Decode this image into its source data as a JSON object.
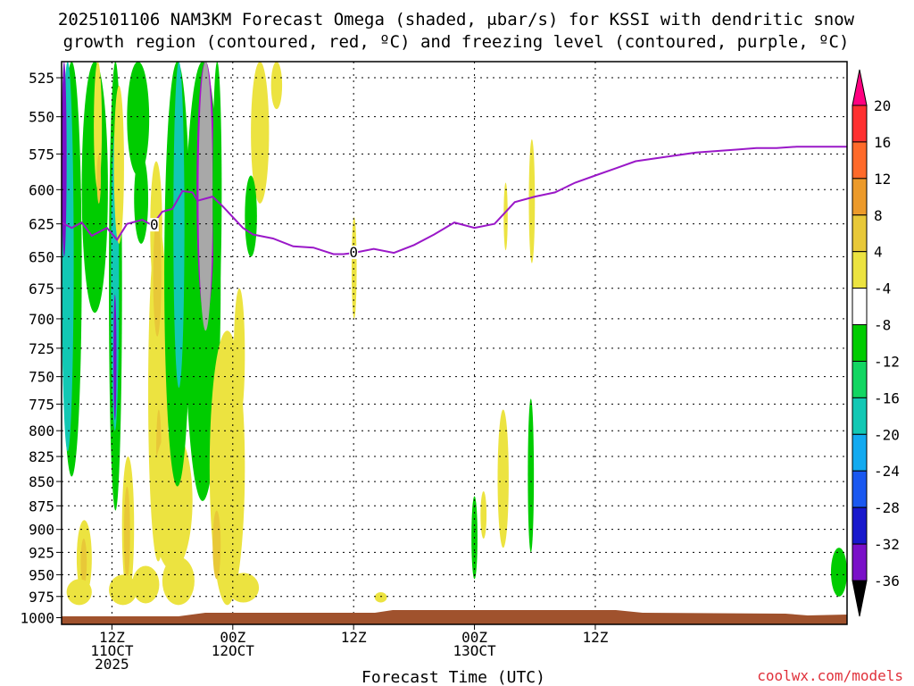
{
  "title": {
    "line1": "2025101106 NAM3KM Forecast Omega (shaded, μbar/s) for KSSI with dendritic snow",
    "line2": "growth region (contoured, red, ºC) and freezing level (contoured, purple, ºC)"
  },
  "credit": "coolwx.com/models",
  "colors": {
    "freezing_level": "#9a18c8",
    "terrain": "#a0522d",
    "grid": "#000000"
  },
  "chart_data": {
    "type": "heatmap",
    "xlabel": "Forecast Time (UTC)",
    "ylabel": "",
    "x_range_hours": [
      -17,
      61
    ],
    "y_range_hPa": [
      515,
      1008
    ],
    "y_scale": "log-pressure (inverted)",
    "grid": true,
    "y_ticks": [
      525,
      550,
      575,
      600,
      625,
      650,
      675,
      700,
      725,
      750,
      775,
      800,
      825,
      850,
      875,
      900,
      925,
      950,
      975,
      1000
    ],
    "x_ticks": [
      {
        "hour": -12,
        "l1": "12Z",
        "l2": "11OCT",
        "l3": "2025"
      },
      {
        "hour": 0,
        "l1": "00Z",
        "l2": "12OCT",
        "l3": ""
      },
      {
        "hour": 12,
        "l1": "12Z",
        "l2": "",
        "l3": ""
      },
      {
        "hour": 24,
        "l1": "00Z",
        "l2": "13OCT",
        "l3": ""
      },
      {
        "hour": 36,
        "l1": "12Z",
        "l2": "",
        "l3": ""
      }
    ],
    "colorbar": {
      "units": "μbar/s",
      "levels": [
        20,
        16,
        12,
        8,
        4,
        -4,
        -8,
        -12,
        -16,
        -20,
        -24,
        -28,
        -32,
        -36
      ],
      "colors": [
        "#ff0080",
        "#ff3030",
        "#ff6a2a",
        "#ec9a2a",
        "#e8c838",
        "#ece340",
        "#ffffff",
        "#00cc00",
        "#12d662",
        "#12c8b4",
        "#12aaf0",
        "#1a58f0",
        "#1818cc",
        "#7a10c8",
        "#a810c8",
        "#a8a8a8",
        "#000000"
      ]
    },
    "freezing_level_label": "0",
    "freezing_level": {
      "name": "0 ºC level",
      "x_hours": [
        -17,
        -16,
        -15,
        -14,
        -12.5,
        -11.5,
        -10.5,
        -9,
        -8,
        -7,
        -6,
        -5,
        -4,
        -3.5,
        -2,
        -1,
        0,
        1,
        2,
        4,
        6,
        8,
        10,
        11,
        12,
        14,
        16,
        18,
        20,
        22,
        24,
        26,
        28,
        30,
        32,
        34,
        36,
        38,
        40,
        42,
        44,
        46,
        48,
        50,
        52,
        54,
        56,
        58,
        61
      ],
      "y_hPa": [
        624,
        628,
        624,
        634,
        628,
        637,
        625,
        622,
        626,
        616,
        614,
        601,
        602,
        608,
        605,
        612,
        620,
        628,
        633,
        636,
        642,
        643,
        648,
        648,
        647,
        644,
        647,
        641,
        633,
        624,
        628,
        625,
        609,
        605,
        602,
        595,
        590,
        585,
        580,
        578,
        576,
        574,
        573,
        572,
        571,
        571,
        570,
        570,
        570
      ]
    },
    "omega_features": [
      {
        "level": 4,
        "x0": -15.5,
        "x1": -14,
        "p_top": 890,
        "p_bot": 975
      },
      {
        "level": 8,
        "x0": -15.1,
        "x1": -14.5,
        "p_top": 910,
        "p_bot": 962
      },
      {
        "level": 4,
        "x0": -16.5,
        "x1": -14,
        "p_top": 955,
        "p_bot": 985
      },
      {
        "level": -4,
        "x0": -17,
        "x1": -15,
        "p_top": 515,
        "p_bot": 845
      },
      {
        "level": -12,
        "x0": -17,
        "x1": -15.8,
        "p_top": 515,
        "p_bot": 820
      },
      {
        "level": -28,
        "x0": -17,
        "x1": -16.5,
        "p_top": 515,
        "p_bot": 650
      },
      {
        "level": -4,
        "x0": -15,
        "x1": -12.4,
        "p_top": 515,
        "p_bot": 695
      },
      {
        "level": 4,
        "x0": -13.8,
        "x1": -13,
        "p_top": 515,
        "p_bot": 600
      },
      {
        "level": 8,
        "x0": -13.5,
        "x1": -13.1,
        "p_top": 575,
        "p_bot": 610
      },
      {
        "level": -4,
        "x0": -12.3,
        "x1": -11,
        "p_top": 515,
        "p_bot": 880
      },
      {
        "level": -12,
        "x0": -12.1,
        "x1": -11.3,
        "p_top": 560,
        "p_bot": 800
      },
      {
        "level": -28,
        "x0": -11.85,
        "x1": -11.55,
        "p_top": 680,
        "p_bot": 790
      },
      {
        "level": 4,
        "x0": -11.8,
        "x1": -10.8,
        "p_top": 530,
        "p_bot": 640
      },
      {
        "level": 4,
        "x0": -11,
        "x1": -9.8,
        "p_top": 825,
        "p_bot": 975
      },
      {
        "level": 8,
        "x0": -10.8,
        "x1": -10.2,
        "p_top": 855,
        "p_bot": 955
      },
      {
        "level": 4,
        "x0": -12.3,
        "x1": -9.5,
        "p_top": 950,
        "p_bot": 985
      },
      {
        "level": 4,
        "x0": -10,
        "x1": -7.3,
        "p_top": 940,
        "p_bot": 983
      },
      {
        "level": -4,
        "x0": -10.5,
        "x1": -8.3,
        "p_top": 515,
        "p_bot": 590
      },
      {
        "level": -4,
        "x0": -9.8,
        "x1": -8.4,
        "p_top": 575,
        "p_bot": 640
      },
      {
        "level": 4,
        "x0": -8.4,
        "x1": -6.4,
        "p_top": 625,
        "p_bot": 935
      },
      {
        "level": 4,
        "x0": -8.2,
        "x1": -7,
        "p_top": 580,
        "p_bot": 680
      },
      {
        "level": 8,
        "x0": -7.9,
        "x1": -7.1,
        "p_top": 620,
        "p_bot": 715
      },
      {
        "level": 8,
        "x0": -7.6,
        "x1": -7.1,
        "p_top": 780,
        "p_bot": 860
      },
      {
        "level": 4,
        "x0": -7,
        "x1": -3.8,
        "p_top": 930,
        "p_bot": 985
      },
      {
        "level": 4,
        "x0": -8,
        "x1": -4,
        "p_top": 800,
        "p_bot": 945
      },
      {
        "level": -4,
        "x0": -6.8,
        "x1": -4.2,
        "p_top": 515,
        "p_bot": 855
      },
      {
        "level": -12,
        "x0": -5.9,
        "x1": -4.8,
        "p_top": 515,
        "p_bot": 760
      },
      {
        "level": -4,
        "x0": -4.8,
        "x1": -1.2,
        "p_top": 515,
        "p_bot": 870
      },
      {
        "level": -32,
        "x0": -3.6,
        "x1": -1.8,
        "p_top": 515,
        "p_bot": 700
      },
      {
        "level": -36,
        "x0": -3.4,
        "x1": -2,
        "p_top": 515,
        "p_bot": 710
      },
      {
        "level": -4,
        "x0": -2,
        "x1": -1.1,
        "p_top": 515,
        "p_bot": 700
      },
      {
        "level": 4,
        "x0": -2.3,
        "x1": 1.2,
        "p_top": 710,
        "p_bot": 985
      },
      {
        "level": 8,
        "x0": -2,
        "x1": -1.2,
        "p_top": 880,
        "p_bot": 955
      },
      {
        "level": 4,
        "x0": 0.1,
        "x1": 1.2,
        "p_top": 675,
        "p_bot": 790
      },
      {
        "level": 4,
        "x0": 1.8,
        "x1": 3.6,
        "p_top": 515,
        "p_bot": 610
      },
      {
        "level": -4,
        "x0": 1.2,
        "x1": 2.4,
        "p_top": 590,
        "p_bot": 650
      },
      {
        "level": 4,
        "x0": -0.5,
        "x1": 2.6,
        "p_top": 948,
        "p_bot": 982
      },
      {
        "level": 4,
        "x0": 3.8,
        "x1": 4.9,
        "p_top": 515,
        "p_bot": 545
      },
      {
        "level": 4,
        "x0": 11.8,
        "x1": 12.3,
        "p_top": 620,
        "p_bot": 700
      },
      {
        "level": 4,
        "x0": 14.1,
        "x1": 15.3,
        "p_top": 970,
        "p_bot": 982
      },
      {
        "level": -4,
        "x0": 23.7,
        "x1": 24.3,
        "p_top": 865,
        "p_bot": 955
      },
      {
        "level": 4,
        "x0": 26.3,
        "x1": 27.4,
        "p_top": 780,
        "p_bot": 920
      },
      {
        "level": 4,
        "x0": 24.6,
        "x1": 25.2,
        "p_top": 860,
        "p_bot": 910
      },
      {
        "level": 4,
        "x0": 26.9,
        "x1": 27.3,
        "p_top": 595,
        "p_bot": 645
      },
      {
        "level": 4,
        "x0": 29.4,
        "x1": 30,
        "p_top": 565,
        "p_bot": 655
      },
      {
        "level": -4,
        "x0": 29.3,
        "x1": 29.9,
        "p_top": 770,
        "p_bot": 925
      },
      {
        "level": -4,
        "x0": 59.4,
        "x1": 61,
        "p_top": 920,
        "p_bot": 975
      }
    ]
  }
}
